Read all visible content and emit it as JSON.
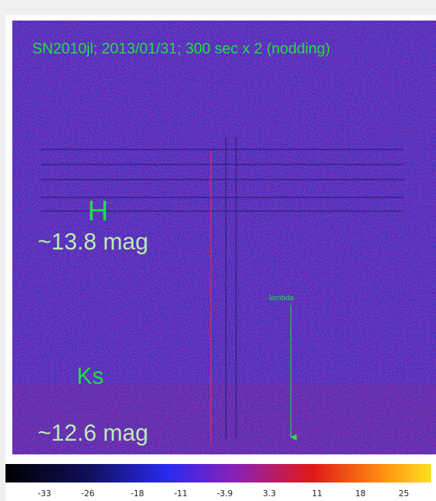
{
  "image": {
    "title": "SN2010jl; 2013/01/31; 300 sec x 2 (nodding)",
    "band_h": {
      "name": "H",
      "magnitude": "~13.8 mag"
    },
    "band_ks": {
      "name": "Ks",
      "magnitude": "~12.6 mag"
    },
    "arrow_label": "lambda"
  },
  "colorbar": {
    "ticks": [
      -33,
      -26,
      -18,
      -11,
      -3.9,
      3.3,
      11,
      18,
      25
    ]
  }
}
